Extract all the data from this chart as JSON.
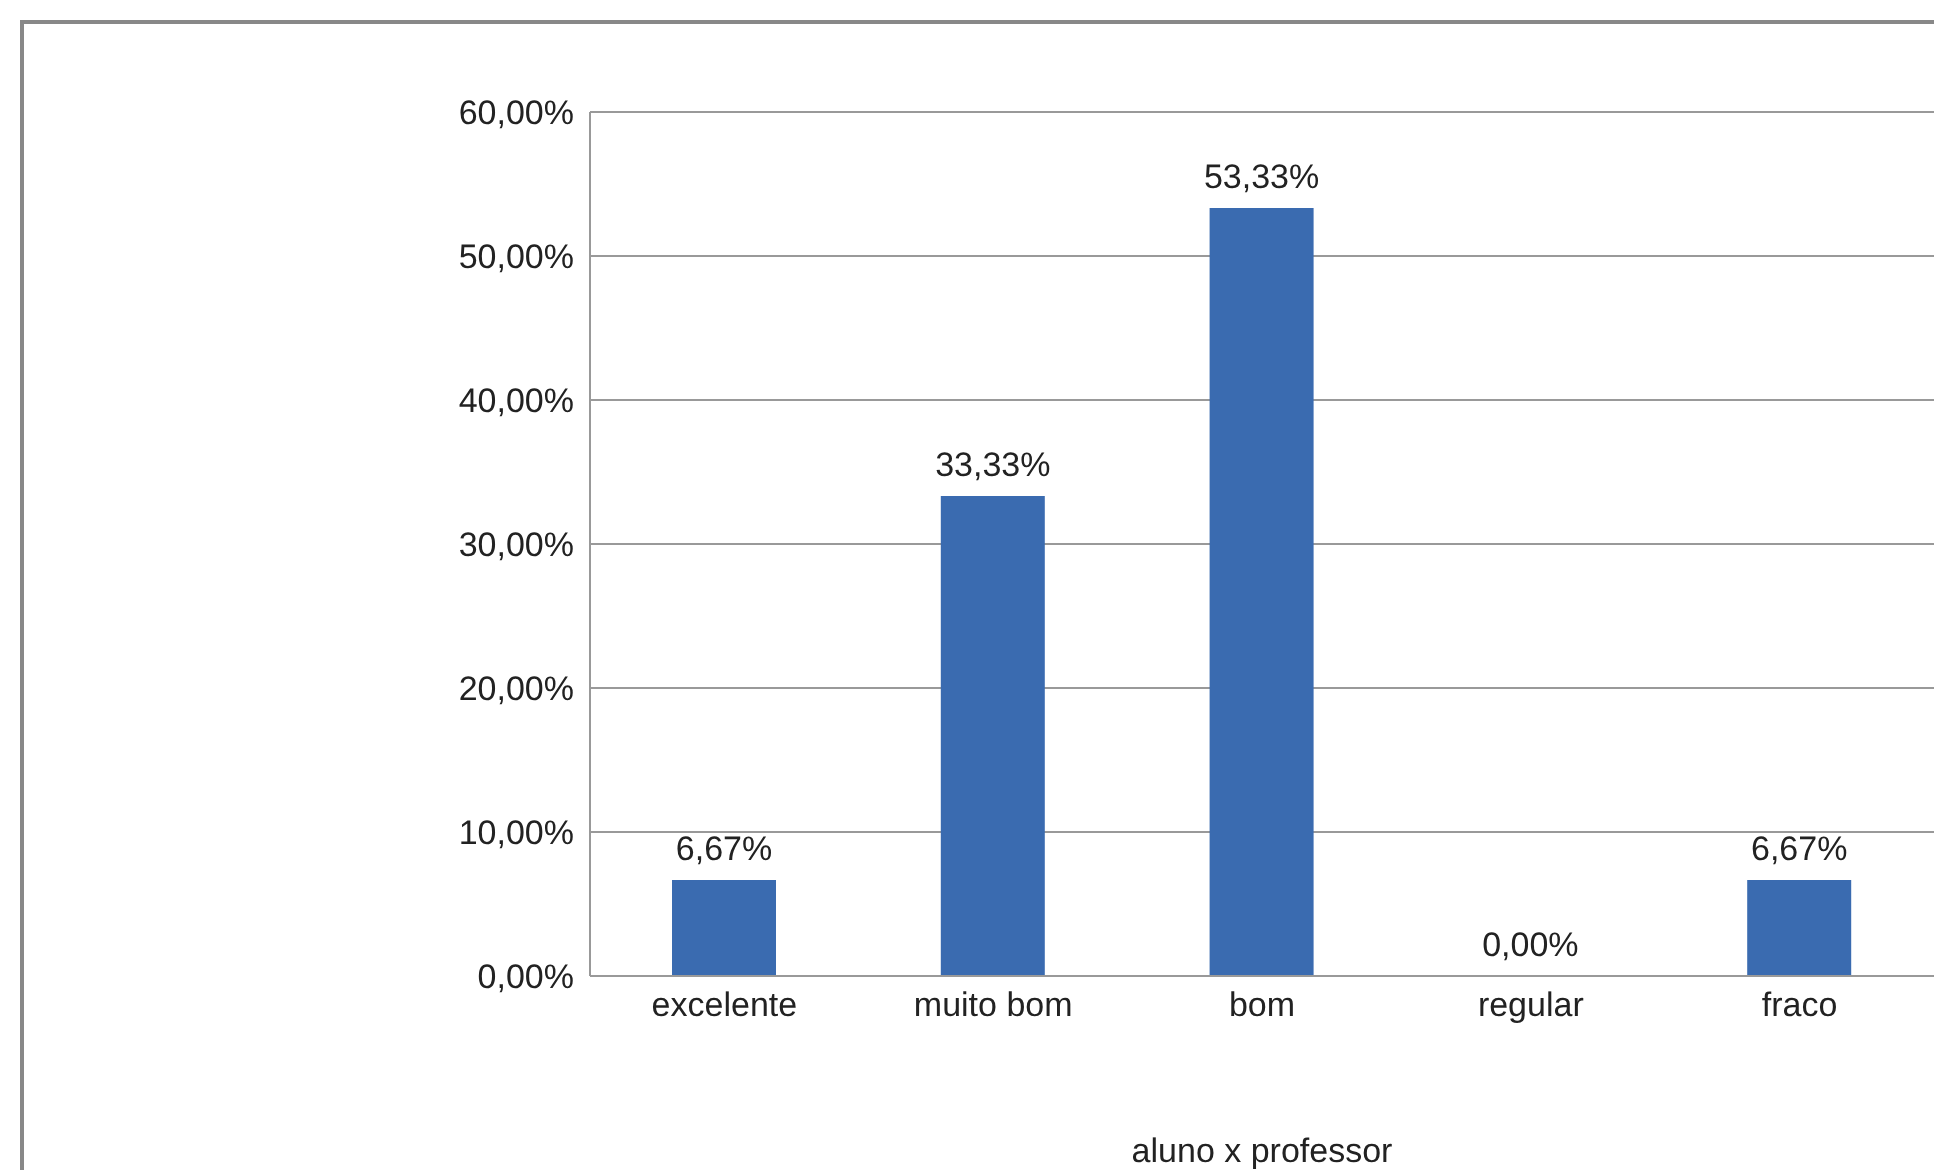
{
  "chart_data": {
    "type": "bar",
    "xlabel": "aluno x professor",
    "categories": [
      "excelente",
      "muito bom",
      "bom",
      "regular",
      "fraco"
    ],
    "values": [
      6.67,
      33.33,
      53.33,
      0,
      6.67
    ],
    "value_labels": [
      "6,67%",
      "33,33%",
      "53,33%",
      "0,00%",
      "6,67%"
    ],
    "color": "#3a6bb0",
    "ylim": [
      0,
      60
    ],
    "yticks": [
      {
        "value": 0,
        "label": "0,00%"
      },
      {
        "value": 10,
        "label": "10,00%"
      },
      {
        "value": 20,
        "label": "20,00%"
      },
      {
        "value": 30,
        "label": "30,00%"
      },
      {
        "value": 40,
        "label": "40,00%"
      },
      {
        "value": 50,
        "label": "50,00%"
      },
      {
        "value": 60,
        "label": "60,00%"
      }
    ],
    "grid": "y",
    "legend": false
  }
}
